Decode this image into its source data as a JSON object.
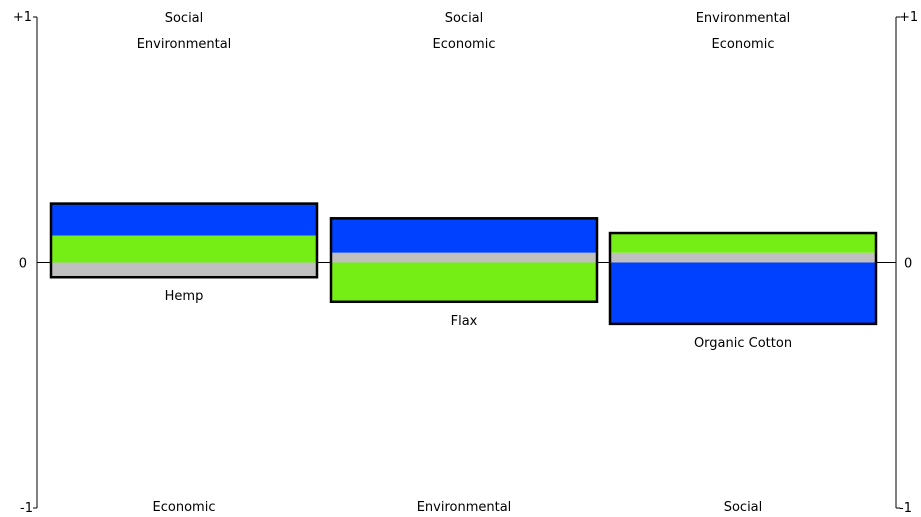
{
  "chart_data": {
    "type": "bar",
    "subtype": "stacked-diverging",
    "ylim": [
      -1,
      1
    ],
    "grid": false,
    "legend": "none",
    "colors": {
      "Social": "#0040ff",
      "Environmental": "#74ee15",
      "Economic": "#c0c0c0",
      "border": "#000000",
      "axis": "#000000"
    },
    "left_axis": {
      "top_label": "+1",
      "zero_label": "0",
      "bottom_label": "-1"
    },
    "right_axis": {
      "top_label": "+1",
      "zero_label": "0",
      "bottom_label": "-1"
    },
    "categories": [
      "Hemp",
      "Flax",
      "Organic Cotton"
    ],
    "columns": [
      {
        "top_labels": [
          "Social",
          "Environmental"
        ],
        "bottom_label": "Economic"
      },
      {
        "top_labels": [
          "Social",
          "Economic"
        ],
        "bottom_label": "Environmental"
      },
      {
        "top_labels": [
          "Environmental",
          "Economic"
        ],
        "bottom_label": "Social"
      }
    ],
    "stacks": [
      [
        {
          "series": "Economic",
          "from": -0.06,
          "to": 0.0
        },
        {
          "series": "Environmental",
          "from": 0.0,
          "to": 0.11
        },
        {
          "series": "Social",
          "from": 0.11,
          "to": 0.24
        }
      ],
      [
        {
          "series": "Environmental",
          "from": -0.16,
          "to": 0.0
        },
        {
          "series": "Economic",
          "from": 0.0,
          "to": 0.04
        },
        {
          "series": "Social",
          "from": 0.04,
          "to": 0.18
        }
      ],
      [
        {
          "series": "Social",
          "from": -0.25,
          "to": 0.0
        },
        {
          "series": "Economic",
          "from": 0.0,
          "to": 0.04
        },
        {
          "series": "Environmental",
          "from": 0.04,
          "to": 0.12
        }
      ]
    ]
  }
}
